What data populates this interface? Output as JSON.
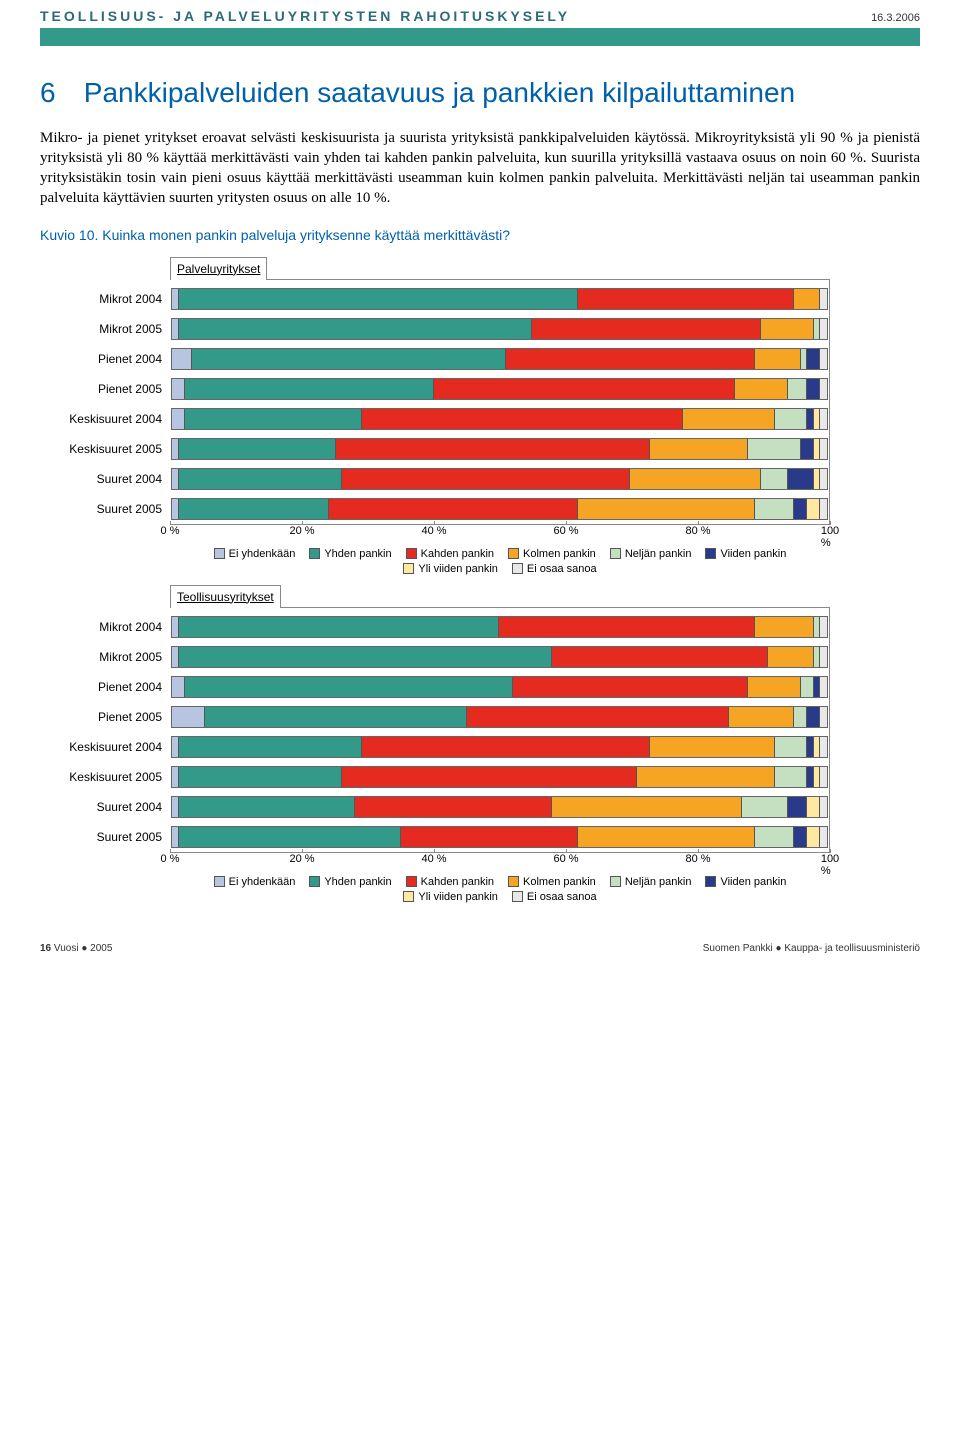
{
  "header": {
    "doc_title": "TEOLLISUUS- JA PALVELUYRITYSTEN RAHOITUSKYSELY",
    "date": "16.3.2006"
  },
  "section": {
    "number": "6",
    "title": "Pankkipalveluiden saatavuus ja pankkien kilpailuttaminen"
  },
  "body_text": "Mikro- ja pienet yritykset eroavat selvästi keskisuurista ja suurista yrityksistä pankkipalveluiden käytössä. Mikroyrityksistä yli 90 % ja pienistä yrityksistä yli 80 % käyttää merkittävästi vain yhden tai kahden pankin palveluita, kun suurilla yrityksillä vastaava osuus on noin 60 %. Suurista yrityksistäkin tosin vain pieni osuus käyttää merkittävästi useamman kuin kolmen pankin palveluita. Merkittävästi neljän tai useamman pankin palveluita käyttävien suurten yritysten osuus on alle 10 %.",
  "chart_caption": "Kuvio 10. Kuinka monen pankin palveluja yrityksenne käyttää merkittävästi?",
  "palette": {
    "ei_yhdenkaan": "#b8c5e0",
    "yhden": "#339988",
    "kahden": "#e52b20",
    "kolmen": "#f5a423",
    "neljan": "#c5e0c0",
    "viiden": "#2a3a8a",
    "yli_viiden": "#ffe8a0",
    "ei_osaa": "#e8e8e8"
  },
  "legend_labels": {
    "ei_yhdenkaan": "Ei yhdenkään",
    "yhden": "Yhden pankin",
    "kahden": "Kahden pankin",
    "kolmen": "Kolmen pankin",
    "neljan": "Neljän pankin",
    "viiden": "Viiden pankin",
    "yli_viiden": "Yli viiden pankin",
    "ei_osaa": "Ei osaa sanoa"
  },
  "xticks": [
    "0 %",
    "20 %",
    "40 %",
    "60 %",
    "80 %",
    "100 %"
  ],
  "row_labels": [
    "Mikrot 2004",
    "Mikrot 2005",
    "Pienet 2004",
    "Pienet 2005",
    "Keskisuuret 2004",
    "Keskisuuret 2005",
    "Suuret 2004",
    "Suuret 2005"
  ],
  "chart1": {
    "subtitle": "Palveluyritykset",
    "rows": [
      {
        "segs": [
          [
            "ei_yhdenkaan",
            1
          ],
          [
            "yhden",
            61
          ],
          [
            "kahden",
            33
          ],
          [
            "kolmen",
            4
          ],
          [
            "neljan",
            0
          ],
          [
            "viiden",
            0
          ],
          [
            "yli_viiden",
            0
          ],
          [
            "ei_osaa",
            1
          ]
        ]
      },
      {
        "segs": [
          [
            "ei_yhdenkaan",
            1
          ],
          [
            "yhden",
            54
          ],
          [
            "kahden",
            35
          ],
          [
            "kolmen",
            8
          ],
          [
            "neljan",
            1
          ],
          [
            "viiden",
            0
          ],
          [
            "yli_viiden",
            0
          ],
          [
            "ei_osaa",
            1
          ]
        ]
      },
      {
        "segs": [
          [
            "ei_yhdenkaan",
            3
          ],
          [
            "yhden",
            48
          ],
          [
            "kahden",
            38
          ],
          [
            "kolmen",
            7
          ],
          [
            "neljan",
            1
          ],
          [
            "viiden",
            2
          ],
          [
            "yli_viiden",
            0
          ],
          [
            "ei_osaa",
            1
          ]
        ]
      },
      {
        "segs": [
          [
            "ei_yhdenkaan",
            2
          ],
          [
            "yhden",
            38
          ],
          [
            "kahden",
            46
          ],
          [
            "kolmen",
            8
          ],
          [
            "neljan",
            3
          ],
          [
            "viiden",
            2
          ],
          [
            "yli_viiden",
            0
          ],
          [
            "ei_osaa",
            1
          ]
        ]
      },
      {
        "segs": [
          [
            "ei_yhdenkaan",
            2
          ],
          [
            "yhden",
            27
          ],
          [
            "kahden",
            49
          ],
          [
            "kolmen",
            14
          ],
          [
            "neljan",
            5
          ],
          [
            "viiden",
            1
          ],
          [
            "yli_viiden",
            1
          ],
          [
            "ei_osaa",
            1
          ]
        ]
      },
      {
        "segs": [
          [
            "ei_yhdenkaan",
            1
          ],
          [
            "yhden",
            24
          ],
          [
            "kahden",
            48
          ],
          [
            "kolmen",
            15
          ],
          [
            "neljan",
            8
          ],
          [
            "viiden",
            2
          ],
          [
            "yli_viiden",
            1
          ],
          [
            "ei_osaa",
            1
          ]
        ]
      },
      {
        "segs": [
          [
            "ei_yhdenkaan",
            1
          ],
          [
            "yhden",
            25
          ],
          [
            "kahden",
            44
          ],
          [
            "kolmen",
            20
          ],
          [
            "neljan",
            4
          ],
          [
            "viiden",
            4
          ],
          [
            "yli_viiden",
            1
          ],
          [
            "ei_osaa",
            1
          ]
        ]
      },
      {
        "segs": [
          [
            "ei_yhdenkaan",
            1
          ],
          [
            "yhden",
            23
          ],
          [
            "kahden",
            38
          ],
          [
            "kolmen",
            27
          ],
          [
            "neljan",
            6
          ],
          [
            "viiden",
            2
          ],
          [
            "yli_viiden",
            2
          ],
          [
            "ei_osaa",
            1
          ]
        ]
      }
    ]
  },
  "chart2": {
    "subtitle": "Teollisuusyritykset",
    "rows": [
      {
        "segs": [
          [
            "ei_yhdenkaan",
            1
          ],
          [
            "yhden",
            49
          ],
          [
            "kahden",
            39
          ],
          [
            "kolmen",
            9
          ],
          [
            "neljan",
            1
          ],
          [
            "viiden",
            0
          ],
          [
            "yli_viiden",
            0
          ],
          [
            "ei_osaa",
            1
          ]
        ]
      },
      {
        "segs": [
          [
            "ei_yhdenkaan",
            1
          ],
          [
            "yhden",
            57
          ],
          [
            "kahden",
            33
          ],
          [
            "kolmen",
            7
          ],
          [
            "neljan",
            1
          ],
          [
            "viiden",
            0
          ],
          [
            "yli_viiden",
            0
          ],
          [
            "ei_osaa",
            1
          ]
        ]
      },
      {
        "segs": [
          [
            "ei_yhdenkaan",
            2
          ],
          [
            "yhden",
            50
          ],
          [
            "kahden",
            36
          ],
          [
            "kolmen",
            8
          ],
          [
            "neljan",
            2
          ],
          [
            "viiden",
            1
          ],
          [
            "yli_viiden",
            0
          ],
          [
            "ei_osaa",
            1
          ]
        ]
      },
      {
        "segs": [
          [
            "ei_yhdenkaan",
            5
          ],
          [
            "yhden",
            40
          ],
          [
            "kahden",
            40
          ],
          [
            "kolmen",
            10
          ],
          [
            "neljan",
            2
          ],
          [
            "viiden",
            2
          ],
          [
            "yli_viiden",
            0
          ],
          [
            "ei_osaa",
            1
          ]
        ]
      },
      {
        "segs": [
          [
            "ei_yhdenkaan",
            1
          ],
          [
            "yhden",
            28
          ],
          [
            "kahden",
            44
          ],
          [
            "kolmen",
            19
          ],
          [
            "neljan",
            5
          ],
          [
            "viiden",
            1
          ],
          [
            "yli_viiden",
            1
          ],
          [
            "ei_osaa",
            1
          ]
        ]
      },
      {
        "segs": [
          [
            "ei_yhdenkaan",
            1
          ],
          [
            "yhden",
            25
          ],
          [
            "kahden",
            45
          ],
          [
            "kolmen",
            21
          ],
          [
            "neljan",
            5
          ],
          [
            "viiden",
            1
          ],
          [
            "yli_viiden",
            1
          ],
          [
            "ei_osaa",
            1
          ]
        ]
      },
      {
        "segs": [
          [
            "ei_yhdenkaan",
            1
          ],
          [
            "yhden",
            27
          ],
          [
            "kahden",
            30
          ],
          [
            "kolmen",
            29
          ],
          [
            "neljan",
            7
          ],
          [
            "viiden",
            3
          ],
          [
            "yli_viiden",
            2
          ],
          [
            "ei_osaa",
            1
          ]
        ]
      },
      {
        "segs": [
          [
            "ei_yhdenkaan",
            1
          ],
          [
            "yhden",
            34
          ],
          [
            "kahden",
            27
          ],
          [
            "kolmen",
            27
          ],
          [
            "neljan",
            6
          ],
          [
            "viiden",
            2
          ],
          [
            "yli_viiden",
            2
          ],
          [
            "ei_osaa",
            1
          ]
        ]
      }
    ]
  },
  "footer": {
    "page_num": "16",
    "left": "Vuosi ● 2005",
    "right": "Suomen Pankki ● Kauppa- ja teollisuusministeriö"
  }
}
